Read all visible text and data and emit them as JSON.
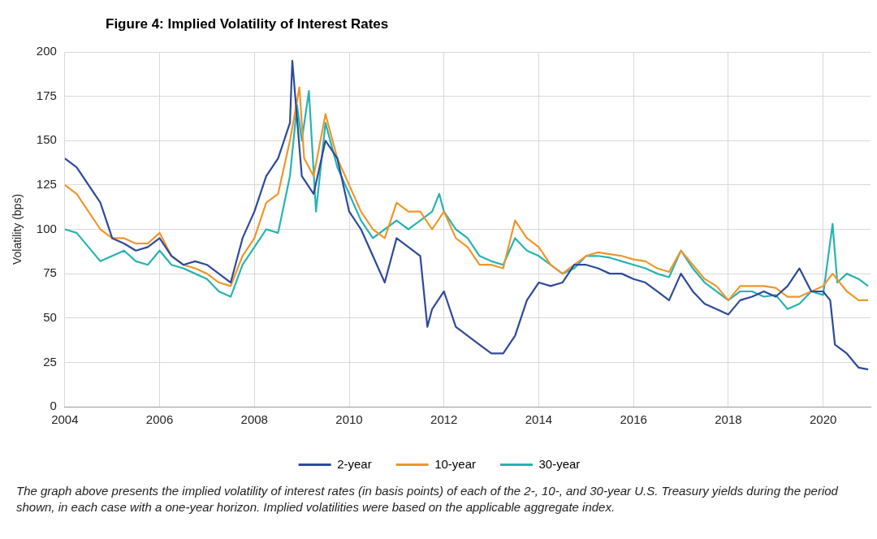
{
  "chart_data": {
    "type": "line",
    "title": "Figure 4: Implied Volatility of Interest Rates",
    "ylabel": "Volatility (bps)",
    "xlim": [
      2004,
      2021
    ],
    "xticks": [
      2004,
      2006,
      2008,
      2010,
      2012,
      2014,
      2016,
      2018,
      2020
    ],
    "ylim": [
      0,
      200
    ],
    "yticks": [
      0,
      25,
      50,
      75,
      100,
      125,
      150,
      175,
      200
    ],
    "grid": true,
    "legend": "bottom",
    "marker": "none",
    "line_style": "solid",
    "series": [
      {
        "name": "2-year",
        "color": "#2e4a9a",
        "x": [
          2004,
          2004.25,
          2004.5,
          2004.75,
          2005,
          2005.25,
          2005.5,
          2005.75,
          2006,
          2006.25,
          2006.5,
          2006.75,
          2007,
          2007.25,
          2007.5,
          2007.75,
          2008,
          2008.25,
          2008.5,
          2008.75,
          2008.8,
          2009,
          2009.25,
          2009.5,
          2009.75,
          2010,
          2010.25,
          2010.5,
          2010.75,
          2011,
          2011.25,
          2011.5,
          2011.65,
          2011.75,
          2012,
          2012.25,
          2012.5,
          2012.75,
          2013,
          2013.25,
          2013.5,
          2013.75,
          2014,
          2014.25,
          2014.5,
          2014.75,
          2015,
          2015.25,
          2015.5,
          2015.75,
          2016,
          2016.25,
          2016.5,
          2016.75,
          2017,
          2017.25,
          2017.5,
          2017.75,
          2018,
          2018.25,
          2018.5,
          2018.75,
          2019,
          2019.25,
          2019.5,
          2019.75,
          2020,
          2020.15,
          2020.25,
          2020.5,
          2020.75,
          2020.95
        ],
        "values": [
          140,
          135,
          125,
          115,
          95,
          92,
          88,
          90,
          95,
          85,
          80,
          82,
          80,
          75,
          70,
          95,
          110,
          130,
          140,
          160,
          195,
          130,
          120,
          150,
          140,
          110,
          100,
          85,
          70,
          95,
          90,
          85,
          45,
          55,
          65,
          45,
          40,
          35,
          30,
          30,
          40,
          60,
          70,
          68,
          70,
          80,
          80,
          78,
          75,
          75,
          72,
          70,
          65,
          60,
          75,
          65,
          58,
          55,
          52,
          60,
          62,
          65,
          62,
          68,
          78,
          65,
          65,
          60,
          35,
          30,
          22,
          21
        ]
      },
      {
        "name": "10-year",
        "color": "#f0962a",
        "x": [
          2004,
          2004.25,
          2004.5,
          2004.75,
          2005,
          2005.25,
          2005.5,
          2005.75,
          2006,
          2006.25,
          2006.5,
          2006.75,
          2007,
          2007.25,
          2007.5,
          2007.75,
          2008,
          2008.25,
          2008.5,
          2008.75,
          2008.95,
          2009.05,
          2009.25,
          2009.5,
          2009.75,
          2010,
          2010.25,
          2010.5,
          2010.75,
          2011,
          2011.25,
          2011.5,
          2011.75,
          2012,
          2012.25,
          2012.5,
          2012.75,
          2013,
          2013.25,
          2013.5,
          2013.75,
          2014,
          2014.25,
          2014.5,
          2014.75,
          2015,
          2015.25,
          2015.5,
          2015.75,
          2016,
          2016.25,
          2016.5,
          2016.75,
          2017,
          2017.25,
          2017.5,
          2017.75,
          2018,
          2018.25,
          2018.5,
          2018.75,
          2019,
          2019.25,
          2019.5,
          2019.75,
          2020,
          2020.2,
          2020.5,
          2020.75,
          2020.95
        ],
        "values": [
          125,
          120,
          110,
          100,
          95,
          95,
          92,
          92,
          98,
          85,
          80,
          78,
          75,
          70,
          68,
          85,
          95,
          115,
          120,
          150,
          180,
          140,
          130,
          165,
          140,
          125,
          110,
          100,
          95,
          115,
          110,
          110,
          100,
          110,
          95,
          90,
          80,
          80,
          78,
          105,
          95,
          90,
          80,
          75,
          80,
          85,
          87,
          86,
          85,
          83,
          82,
          78,
          76,
          88,
          80,
          72,
          68,
          60,
          68,
          68,
          68,
          67,
          62,
          62,
          65,
          68,
          75,
          65,
          60,
          60
        ]
      },
      {
        "name": "30-year",
        "color": "#26b3b3",
        "x": [
          2004,
          2004.25,
          2004.5,
          2004.75,
          2005,
          2005.25,
          2005.5,
          2005.75,
          2006,
          2006.25,
          2006.5,
          2006.75,
          2007,
          2007.25,
          2007.5,
          2007.75,
          2008,
          2008.25,
          2008.5,
          2008.75,
          2008.9,
          2009,
          2009.15,
          2009.3,
          2009.5,
          2009.75,
          2010,
          2010.25,
          2010.5,
          2010.75,
          2011,
          2011.25,
          2011.5,
          2011.75,
          2011.9,
          2012,
          2012.25,
          2012.5,
          2012.75,
          2013,
          2013.25,
          2013.5,
          2013.75,
          2014,
          2014.25,
          2014.5,
          2014.75,
          2015,
          2015.25,
          2015.5,
          2015.75,
          2016,
          2016.25,
          2016.5,
          2016.75,
          2017,
          2017.25,
          2017.5,
          2017.75,
          2018,
          2018.25,
          2018.5,
          2018.75,
          2019,
          2019.25,
          2019.5,
          2019.75,
          2020,
          2020.2,
          2020.3,
          2020.5,
          2020.75,
          2020.95
        ],
        "values": [
          100,
          98,
          90,
          82,
          85,
          88,
          82,
          80,
          88,
          80,
          78,
          75,
          72,
          65,
          62,
          80,
          90,
          100,
          98,
          130,
          170,
          150,
          178,
          110,
          160,
          135,
          120,
          105,
          95,
          100,
          105,
          100,
          105,
          110,
          120,
          110,
          100,
          95,
          85,
          82,
          80,
          95,
          88,
          85,
          80,
          75,
          78,
          85,
          85,
          84,
          82,
          80,
          78,
          75,
          73,
          88,
          78,
          70,
          65,
          60,
          65,
          65,
          62,
          63,
          55,
          58,
          65,
          63,
          103,
          70,
          75,
          72,
          68
        ]
      }
    ],
    "annotations": [
      "The graph above presents the implied volatility of interest rates (in basis points) of each of the 2-, 10-, and 30-year U.S. Treasury yields during the period shown, in each case with a one-year horizon.  Implied volatilities were based on the applicable aggregate index."
    ]
  }
}
